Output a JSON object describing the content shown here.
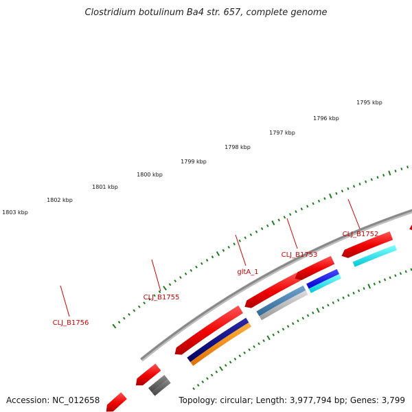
{
  "title": "Clostridium botulinum Ba4 str. 657, complete genome",
  "accession_text": "Accession: NC_012658",
  "summary_text": "Topology: circular; Length: 3,977,794 bp; Genes: 3,799",
  "ruler_labels": [
    "1795 kbp",
    "1796 kbp",
    "1797 kbp",
    "1798 kbp",
    "1799 kbp",
    "1800 kbp",
    "1801 kbp",
    "1802 kbp",
    "1803 kbp"
  ],
  "gene_labels": [
    "CLJ_B1752",
    "CLJ_B1753",
    "gltA_1",
    "CLJ_B1755",
    "CLJ_B1756"
  ],
  "colors": {
    "backbone": "#888888",
    "ticks": "#1a7a1a",
    "cds": "#ee1111",
    "label": "#cc0000",
    "navy": "#000080",
    "blue": "#1515ee",
    "orange": "#ff8c00",
    "cyan": "#00e5ee",
    "steelblue": "#4682b4",
    "silver": "#b0b0b0",
    "gray": "#666666"
  }
}
